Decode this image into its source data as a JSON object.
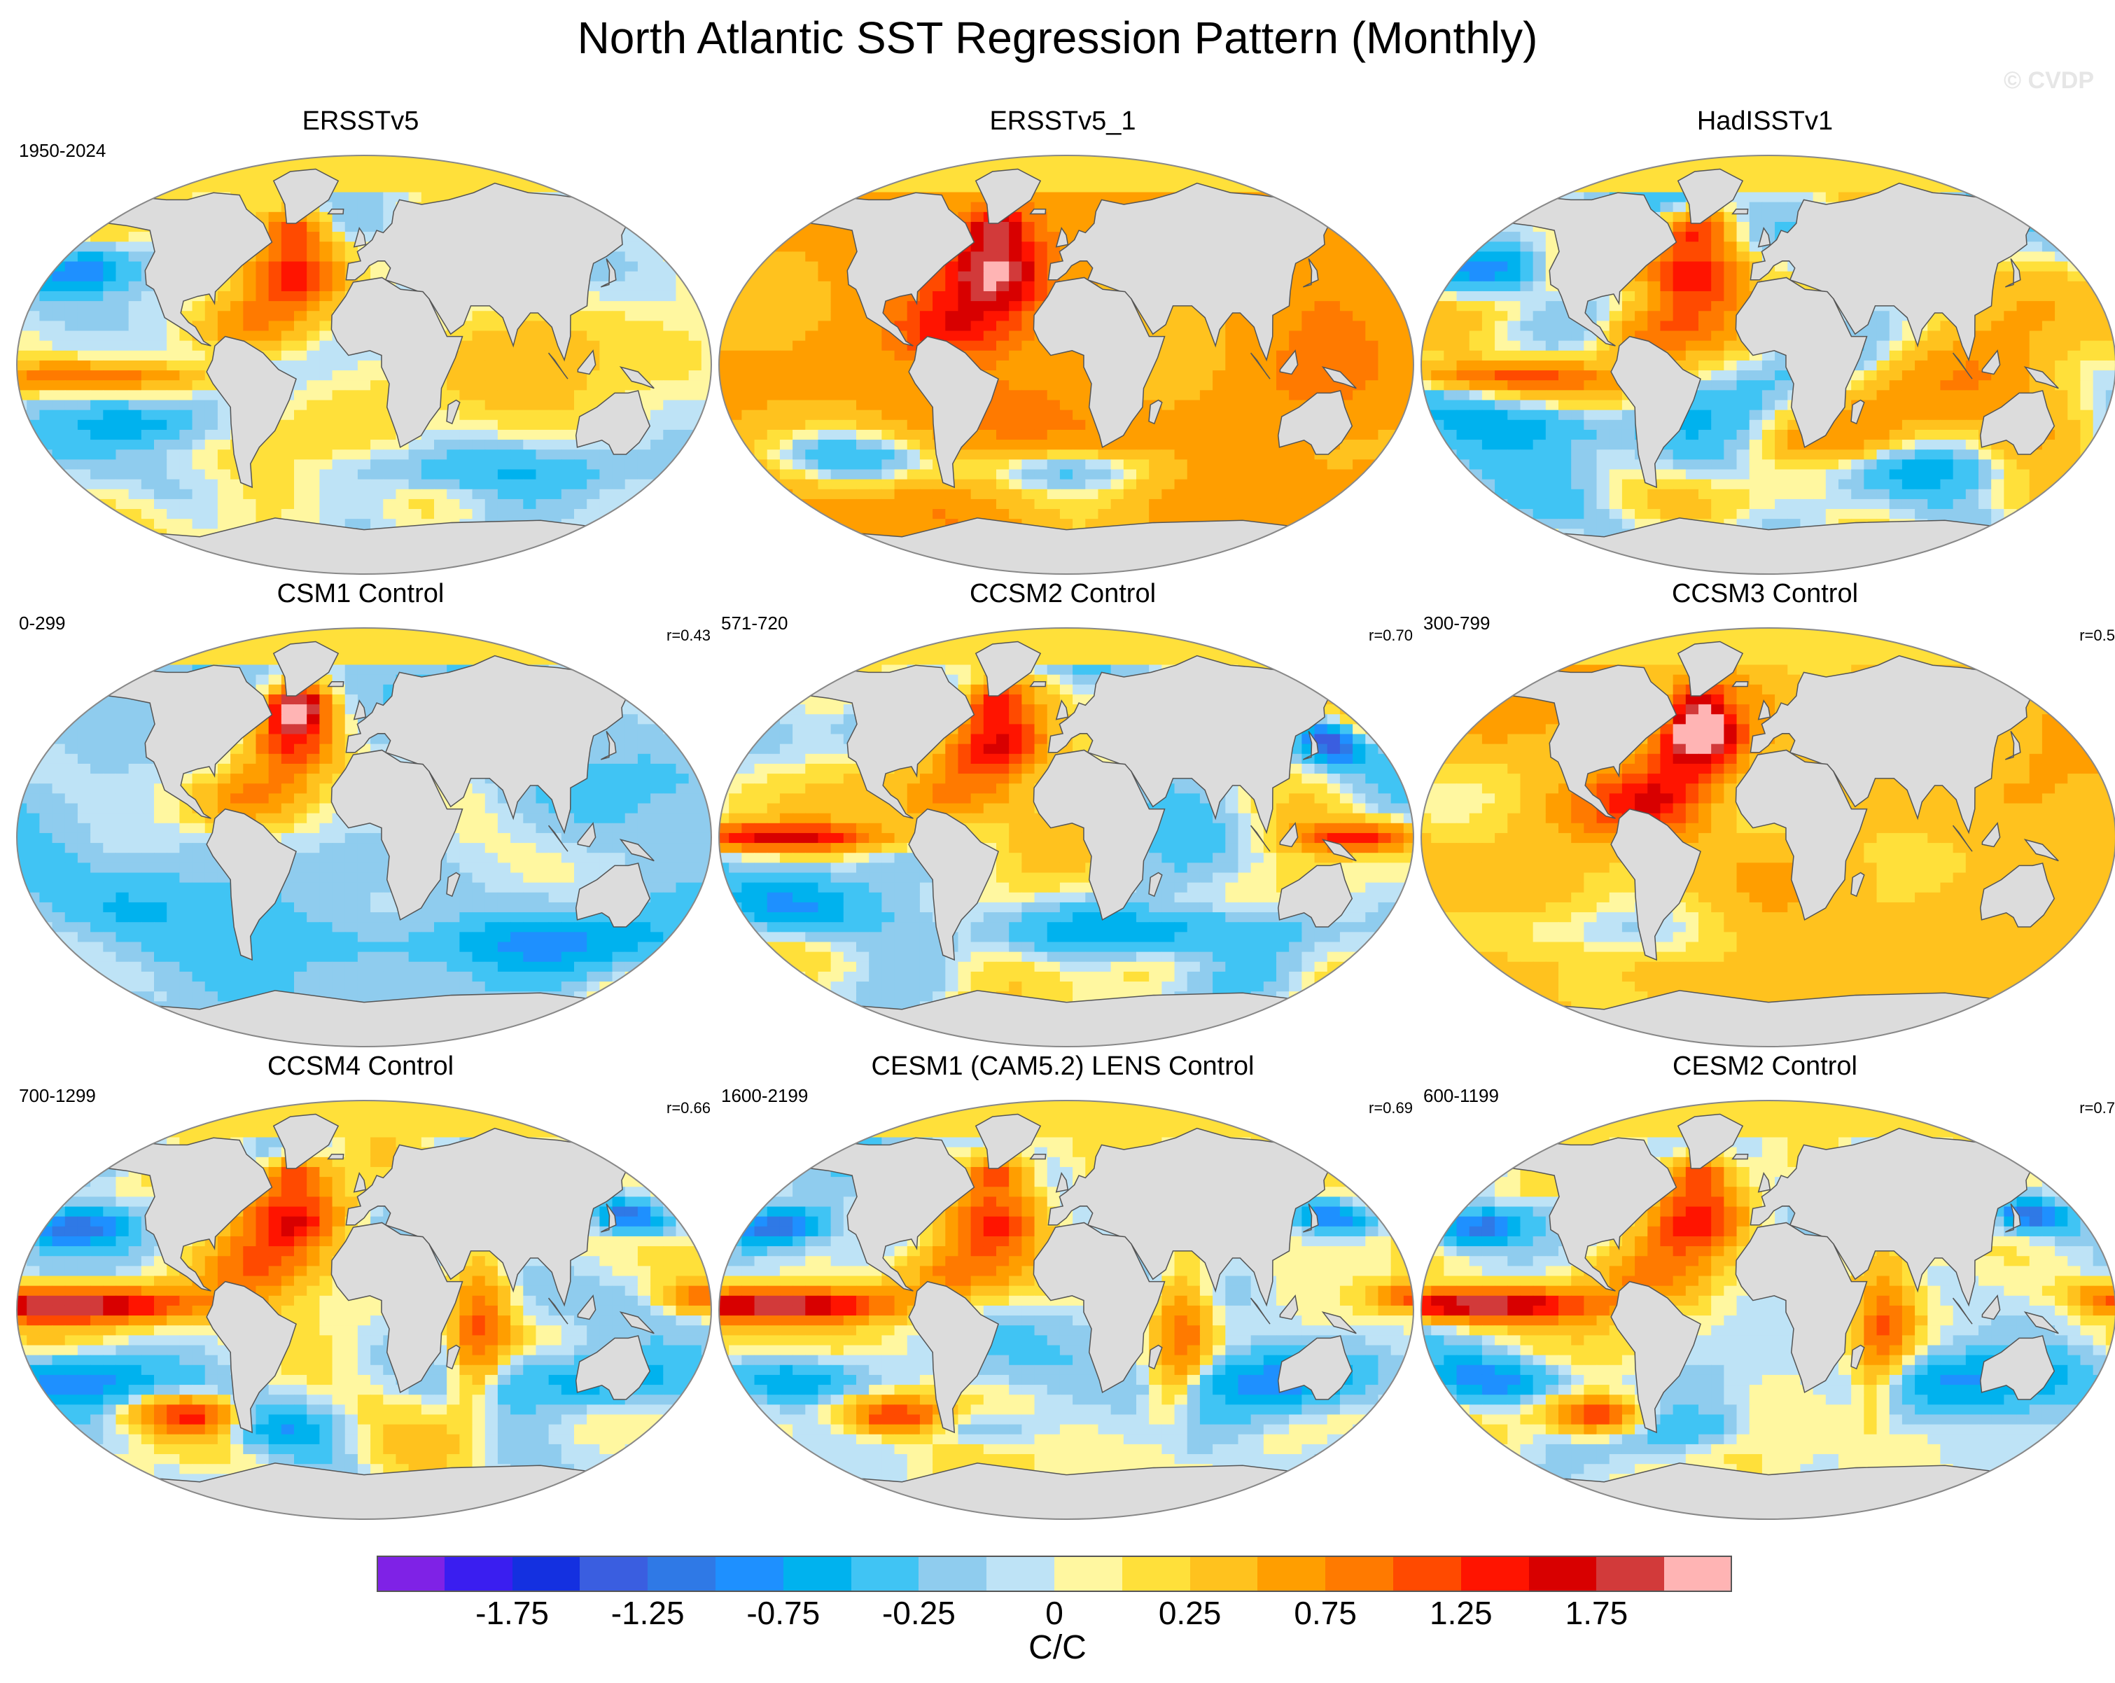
{
  "title": "North Atlantic SST Regression Pattern (Monthly)",
  "watermark": "© CVDP",
  "panels": [
    {
      "name": "ERSSTv5",
      "period": "1950-2024",
      "corr": "",
      "pattern": "obs"
    },
    {
      "name": "ERSSTv5_1",
      "period": "",
      "corr": "",
      "pattern": "obs_warm"
    },
    {
      "name": "HadISSTv1",
      "period": "",
      "corr": "",
      "pattern": "obs_noisy"
    },
    {
      "name": "CSM1 Control",
      "period": "0-299",
      "corr": "r=0.43",
      "pattern": "csm1"
    },
    {
      "name": "CCSM2 Control",
      "period": "571-720",
      "corr": "r=0.70",
      "pattern": "ccsm2"
    },
    {
      "name": "CCSM3 Control",
      "period": "300-799",
      "corr": "r=0.5",
      "pattern": "ccsm3"
    },
    {
      "name": "CCSM4 Control",
      "period": "700-1299",
      "corr": "r=0.66",
      "pattern": "ccsm4"
    },
    {
      "name": "CESM1 (CAM5.2) LENS Control",
      "period": "1600-2199",
      "corr": "r=0.69",
      "pattern": "cesm1"
    },
    {
      "name": "CESM2 Control",
      "period": "600-1199",
      "corr": "r=0.7",
      "pattern": "cesm2"
    }
  ],
  "colorbar": {
    "unit": "C/C",
    "colors": [
      "#7f22e6",
      "#3a1ef0",
      "#1430e0",
      "#3a5ee0",
      "#2f79e6",
      "#1e90ff",
      "#00b2ee",
      "#40c4f4",
      "#8fccee",
      "#bee3f6",
      "#fff7a0",
      "#ffe03a",
      "#ffc21e",
      "#ff9e00",
      "#ff7a00",
      "#ff4a00",
      "#ff1400",
      "#d80000",
      "#d23a3a",
      "#ffb4b4"
    ],
    "ticks": [
      "-1.75",
      "-1.25",
      "-0.75",
      "-0.25",
      "0",
      "0.25",
      "0.75",
      "1.25",
      "1.75"
    ]
  }
}
